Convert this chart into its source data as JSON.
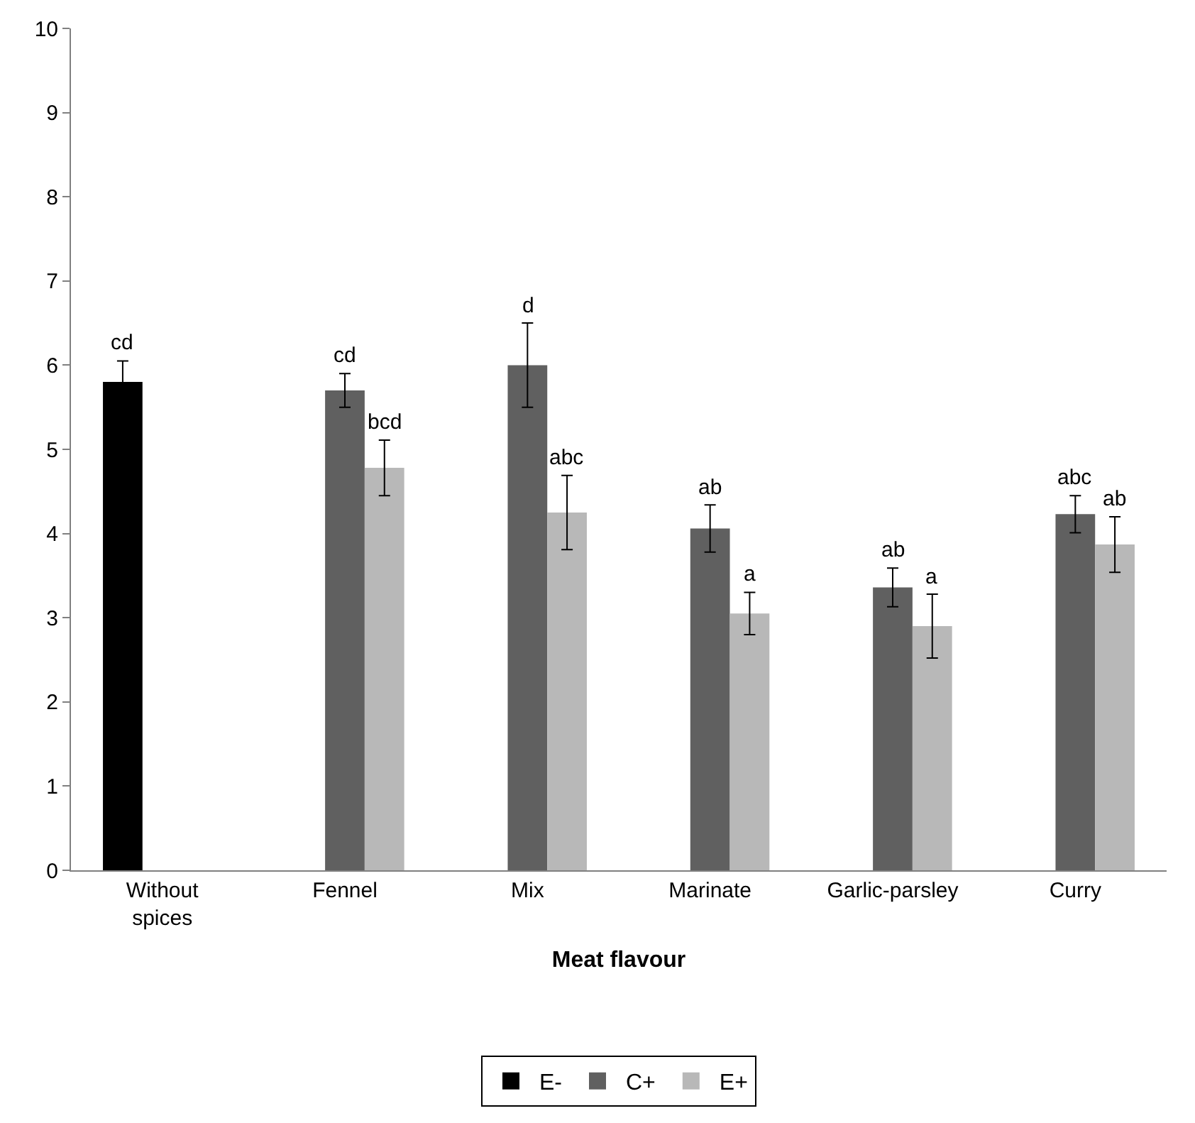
{
  "chart_data": {
    "type": "bar",
    "xlabel": "Meat flavour",
    "categories": [
      "Without spices",
      "Fennel",
      "Mix",
      "Marinate",
      "Garlic-parsley",
      "Curry"
    ],
    "series": [
      {
        "name": "E-",
        "color": "#000000",
        "values": [
          5.8,
          null,
          null,
          null,
          null,
          null
        ],
        "errors": [
          0.25,
          null,
          null,
          null,
          null,
          null
        ],
        "value_labels": [
          "cd",
          null,
          null,
          null,
          null,
          null
        ]
      },
      {
        "name": "C+",
        "color": "#606060",
        "values": [
          null,
          5.7,
          6.0,
          4.06,
          3.36,
          4.23
        ],
        "errors": [
          null,
          0.2,
          0.5,
          0.28,
          0.23,
          0.22
        ],
        "value_labels": [
          null,
          "cd",
          "d",
          "ab",
          "ab",
          "abc"
        ]
      },
      {
        "name": "E+",
        "color": "#b8b8b8",
        "values": [
          null,
          4.78,
          4.25,
          3.05,
          2.9,
          3.87
        ],
        "errors": [
          null,
          0.33,
          0.44,
          0.25,
          0.38,
          0.33
        ],
        "value_labels": [
          null,
          "bcd",
          "abc",
          "a",
          "a",
          "ab"
        ]
      }
    ],
    "ylim": [
      0,
      10
    ],
    "yticks": [
      0,
      1,
      2,
      3,
      4,
      5,
      6,
      7,
      8,
      9,
      10
    ],
    "legend": "bottom"
  }
}
